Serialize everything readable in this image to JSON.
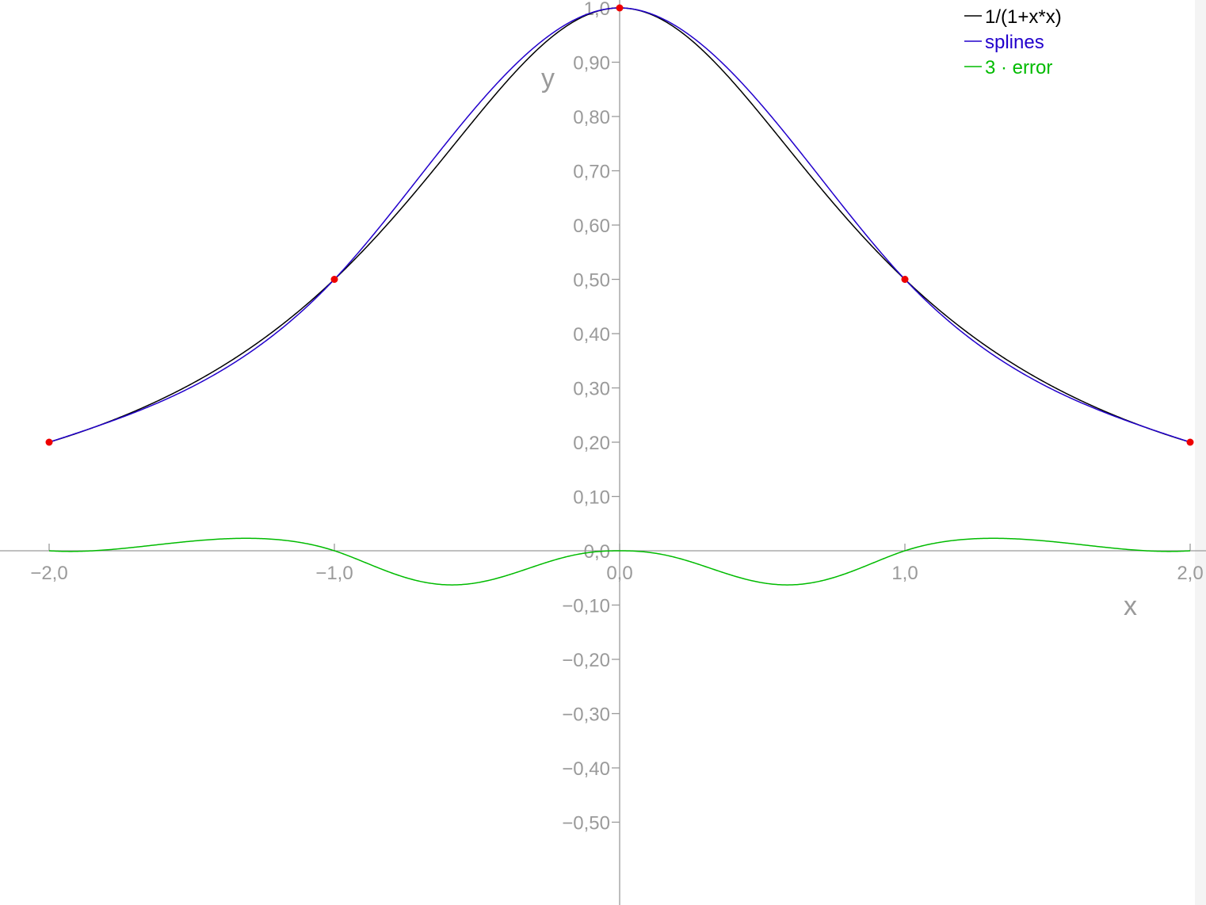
{
  "chart_data": {
    "type": "line",
    "title": "",
    "xlabel": "x",
    "ylabel": "y",
    "xlim": [
      -2.0,
      2.0
    ],
    "ylim": [
      -0.6,
      1.0
    ],
    "x_ticks": [
      {
        "value": -2.0,
        "label": "−2,0"
      },
      {
        "value": -1.0,
        "label": "−1,0"
      },
      {
        "value": 0.0,
        "label": "0,0"
      },
      {
        "value": 1.0,
        "label": "1,0"
      },
      {
        "value": 2.0,
        "label": "2,0"
      }
    ],
    "y_ticks": [
      {
        "value": 1.0,
        "label": "1,0"
      },
      {
        "value": 0.9,
        "label": "0,90"
      },
      {
        "value": 0.8,
        "label": "0,80"
      },
      {
        "value": 0.7,
        "label": "0,70"
      },
      {
        "value": 0.6,
        "label": "0,60"
      },
      {
        "value": 0.5,
        "label": "0,50"
      },
      {
        "value": 0.4,
        "label": "0,40"
      },
      {
        "value": 0.3,
        "label": "0,30"
      },
      {
        "value": 0.2,
        "label": "0,20"
      },
      {
        "value": 0.1,
        "label": "0,10"
      },
      {
        "value": 0.0,
        "label": "0,0"
      },
      {
        "value": -0.1,
        "label": "−0,10"
      },
      {
        "value": -0.2,
        "label": "−0,20"
      },
      {
        "value": -0.3,
        "label": "−0,30"
      },
      {
        "value": -0.4,
        "label": "−0,40"
      },
      {
        "value": -0.5,
        "label": "−0,50"
      }
    ],
    "legend_position": "top-right",
    "series": [
      {
        "name": "1/(1+x*x)",
        "color": "#000000",
        "function": "runge"
      },
      {
        "name": "splines",
        "color": "#2200cc",
        "function": "spline"
      },
      {
        "name": "3 · error",
        "color": "#00bb00",
        "function": "error3"
      }
    ],
    "knots": {
      "color": "#ee0000",
      "x": [
        -2.0,
        -1.0,
        0.0,
        1.0,
        2.0
      ],
      "y": [
        0.2,
        0.5,
        1.0,
        0.5,
        0.2
      ]
    }
  }
}
